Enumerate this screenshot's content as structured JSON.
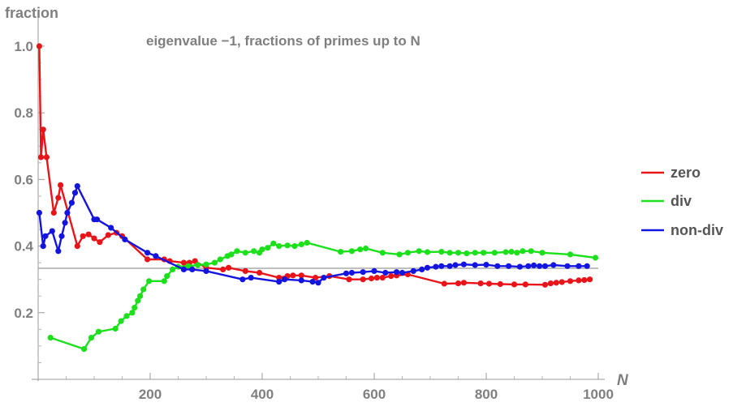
{
  "chart_data": {
    "type": "line",
    "title": "eigenvalue −1, fractions of primes up to N",
    "xlabel": "N",
    "ylabel": "fraction",
    "xlim": [
      0,
      1000
    ],
    "ylim": [
      0,
      1.05
    ],
    "x_ticks": [
      200,
      400,
      600,
      800,
      1000
    ],
    "y_ticks": [
      0.2,
      0.4,
      0.6,
      0.8,
      1.0
    ],
    "x_tick_labels": [
      "200",
      "400",
      "600",
      "800",
      "1000"
    ],
    "y_tick_labels": [
      "0.2",
      "0.4",
      "0.6",
      "0.8",
      "1.0"
    ],
    "reference_line": {
      "y": 0.3333,
      "color": "#999999"
    },
    "grid": false,
    "legend_position": "right",
    "series": [
      {
        "name": "zero",
        "color": "#e8141a",
        "x": [
          2,
          5,
          9,
          15,
          28,
          36,
          40,
          70,
          80,
          90,
          100,
          110,
          125,
          140,
          150,
          195,
          225,
          235,
          260,
          270,
          280,
          300,
          330,
          340,
          370,
          395,
          430,
          445,
          455,
          470,
          495,
          520,
          555,
          580,
          595,
          605,
          615,
          630,
          640,
          660,
          725,
          750,
          760,
          790,
          805,
          825,
          850,
          870,
          905,
          915,
          925,
          935,
          950,
          965,
          975,
          985
        ],
        "y": [
          1.0,
          0.667,
          0.75,
          0.667,
          0.5,
          0.545,
          0.583,
          0.4,
          0.43,
          0.435,
          0.423,
          0.412,
          0.433,
          0.44,
          0.43,
          0.36,
          0.36,
          0.355,
          0.35,
          0.35,
          0.355,
          0.335,
          0.33,
          0.335,
          0.325,
          0.32,
          0.305,
          0.31,
          0.312,
          0.312,
          0.305,
          0.31,
          0.3,
          0.3,
          0.303,
          0.305,
          0.305,
          0.31,
          0.312,
          0.315,
          0.287,
          0.288,
          0.29,
          0.288,
          0.287,
          0.286,
          0.285,
          0.285,
          0.284,
          0.288,
          0.29,
          0.292,
          0.295,
          0.297,
          0.298,
          0.3
        ]
      },
      {
        "name": "div",
        "color": "#1be01b",
        "x": [
          22,
          82,
          95,
          108,
          138,
          148,
          158,
          168,
          172,
          178,
          182,
          188,
          198,
          225,
          230,
          240,
          250,
          268,
          285,
          300,
          315,
          325,
          338,
          345,
          355,
          370,
          385,
          395,
          400,
          410,
          420,
          430,
          445,
          458,
          470,
          480,
          540,
          560,
          575,
          585,
          615,
          645,
          660,
          680,
          695,
          720,
          735,
          750,
          765,
          780,
          795,
          815,
          835,
          845,
          855,
          865,
          880,
          900,
          950,
          995
        ],
        "y": [
          0.125,
          0.091,
          0.125,
          0.143,
          0.152,
          0.175,
          0.19,
          0.2,
          0.215,
          0.236,
          0.25,
          0.27,
          0.295,
          0.295,
          0.31,
          0.33,
          0.338,
          0.34,
          0.343,
          0.345,
          0.35,
          0.36,
          0.37,
          0.375,
          0.385,
          0.38,
          0.385,
          0.38,
          0.39,
          0.395,
          0.408,
          0.4,
          0.402,
          0.4,
          0.405,
          0.41,
          0.383,
          0.385,
          0.39,
          0.393,
          0.38,
          0.375,
          0.38,
          0.385,
          0.382,
          0.383,
          0.38,
          0.38,
          0.378,
          0.38,
          0.38,
          0.38,
          0.382,
          0.383,
          0.38,
          0.385,
          0.385,
          0.38,
          0.375,
          0.365
        ]
      },
      {
        "name": "non-div",
        "color": "#1414e0",
        "x": [
          2,
          9,
          13,
          25,
          36,
          42,
          48,
          52,
          60,
          66,
          70,
          100,
          105,
          130,
          155,
          195,
          210,
          260,
          275,
          300,
          365,
          380,
          430,
          440,
          470,
          490,
          500,
          510,
          550,
          560,
          580,
          600,
          620,
          640,
          650,
          670,
          685,
          695,
          710,
          720,
          735,
          745,
          760,
          780,
          800,
          820,
          840,
          860,
          875,
          885,
          895,
          905,
          920,
          945,
          965,
          980
        ],
        "y": [
          0.5,
          0.4,
          0.43,
          0.445,
          0.385,
          0.43,
          0.47,
          0.5,
          0.53,
          0.56,
          0.58,
          0.48,
          0.48,
          0.455,
          0.42,
          0.38,
          0.37,
          0.33,
          0.33,
          0.325,
          0.3,
          0.305,
          0.293,
          0.3,
          0.297,
          0.293,
          0.29,
          0.305,
          0.318,
          0.32,
          0.322,
          0.325,
          0.32,
          0.322,
          0.32,
          0.325,
          0.33,
          0.335,
          0.338,
          0.34,
          0.34,
          0.343,
          0.345,
          0.343,
          0.344,
          0.34,
          0.34,
          0.338,
          0.34,
          0.342,
          0.34,
          0.34,
          0.343,
          0.34,
          0.34,
          0.34
        ]
      }
    ]
  }
}
